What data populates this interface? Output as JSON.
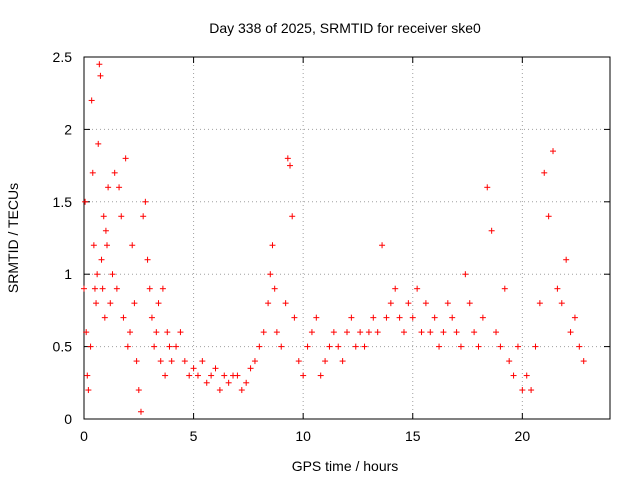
{
  "chart_data": {
    "type": "scatter",
    "title": "Day 338 of 2025, SRMTID for receiver ske0",
    "xlabel": "GPS time / hours",
    "ylabel": "SRMTID / TECUs",
    "xlim": [
      0,
      24
    ],
    "ylim": [
      0,
      2.5
    ],
    "x_ticks": [
      0,
      5,
      10,
      15,
      20
    ],
    "x_tick_labels": [
      "0",
      "5",
      "10",
      "15",
      "20"
    ],
    "y_ticks": [
      0,
      0.5,
      1,
      1.5,
      2,
      2.5
    ],
    "y_tick_labels": [
      "0",
      "0.5",
      "1",
      "1.5",
      "2",
      "2.5"
    ],
    "grid": true,
    "marker": "+",
    "series": [
      {
        "name": "SRMTID",
        "color": "#ff0000",
        "x": [
          0.0,
          0.05,
          0.1,
          0.15,
          0.2,
          0.3,
          0.35,
          0.4,
          0.45,
          0.5,
          0.55,
          0.6,
          0.65,
          0.7,
          0.75,
          0.8,
          0.85,
          0.9,
          0.95,
          1.0,
          1.05,
          1.1,
          1.2,
          1.3,
          1.4,
          1.5,
          1.6,
          1.7,
          1.8,
          1.9,
          2.0,
          2.1,
          2.2,
          2.3,
          2.4,
          2.5,
          2.6,
          2.7,
          2.8,
          2.9,
          3.0,
          3.1,
          3.2,
          3.3,
          3.4,
          3.5,
          3.6,
          3.7,
          3.8,
          3.9,
          4.0,
          4.2,
          4.4,
          4.6,
          4.8,
          5.0,
          5.2,
          5.4,
          5.6,
          5.8,
          6.0,
          6.2,
          6.4,
          6.6,
          6.8,
          7.0,
          7.2,
          7.4,
          7.6,
          7.8,
          8.0,
          8.2,
          8.4,
          8.5,
          8.6,
          8.7,
          8.8,
          9.0,
          9.2,
          9.3,
          9.4,
          9.5,
          9.6,
          9.8,
          10.0,
          10.2,
          10.4,
          10.6,
          10.8,
          11.0,
          11.2,
          11.4,
          11.6,
          11.8,
          12.0,
          12.2,
          12.4,
          12.6,
          12.8,
          13.0,
          13.2,
          13.4,
          13.6,
          13.8,
          14.0,
          14.2,
          14.4,
          14.6,
          14.8,
          15.0,
          15.2,
          15.4,
          15.6,
          15.8,
          16.0,
          16.2,
          16.4,
          16.6,
          16.8,
          17.0,
          17.2,
          17.4,
          17.6,
          17.8,
          18.0,
          18.2,
          18.4,
          18.6,
          18.8,
          19.0,
          19.2,
          19.4,
          19.6,
          19.8,
          20.0,
          20.2,
          20.4,
          20.6,
          20.8,
          21.0,
          21.2,
          21.4,
          21.6,
          21.8,
          22.0,
          22.2,
          22.4,
          22.6,
          22.8
        ],
        "y": [
          0.9,
          1.5,
          0.6,
          0.3,
          0.2,
          0.5,
          2.2,
          1.7,
          1.2,
          0.9,
          0.8,
          1.0,
          1.9,
          2.45,
          2.37,
          1.1,
          0.9,
          1.4,
          0.7,
          1.3,
          1.2,
          1.6,
          0.8,
          1.0,
          1.7,
          0.9,
          1.6,
          1.4,
          0.7,
          1.8,
          0.5,
          0.6,
          1.2,
          0.8,
          0.4,
          0.2,
          0.05,
          1.4,
          1.5,
          1.1,
          0.9,
          0.7,
          0.5,
          0.6,
          0.8,
          0.4,
          0.9,
          0.3,
          0.6,
          0.5,
          0.4,
          0.5,
          0.6,
          0.4,
          0.3,
          0.35,
          0.3,
          0.4,
          0.25,
          0.3,
          0.35,
          0.2,
          0.3,
          0.25,
          0.3,
          0.3,
          0.2,
          0.25,
          0.35,
          0.4,
          0.5,
          0.6,
          0.8,
          1.0,
          1.2,
          0.9,
          0.6,
          0.5,
          0.8,
          1.8,
          1.75,
          1.4,
          0.7,
          0.4,
          0.3,
          0.5,
          0.6,
          0.7,
          0.3,
          0.4,
          0.5,
          0.6,
          0.5,
          0.4,
          0.6,
          0.7,
          0.5,
          0.6,
          0.5,
          0.6,
          0.7,
          0.6,
          1.2,
          0.7,
          0.8,
          0.9,
          0.7,
          0.6,
          0.8,
          0.7,
          0.9,
          0.6,
          0.8,
          0.6,
          0.7,
          0.5,
          0.6,
          0.8,
          0.7,
          0.6,
          0.5,
          1.0,
          0.8,
          0.6,
          0.5,
          0.7,
          1.6,
          1.3,
          0.6,
          0.5,
          0.9,
          0.4,
          0.3,
          0.5,
          0.2,
          0.3,
          0.2,
          0.5,
          0.8,
          1.7,
          1.4,
          1.85,
          0.9,
          0.8,
          1.1,
          0.6,
          0.7,
          0.5,
          0.4
        ]
      }
    ]
  }
}
